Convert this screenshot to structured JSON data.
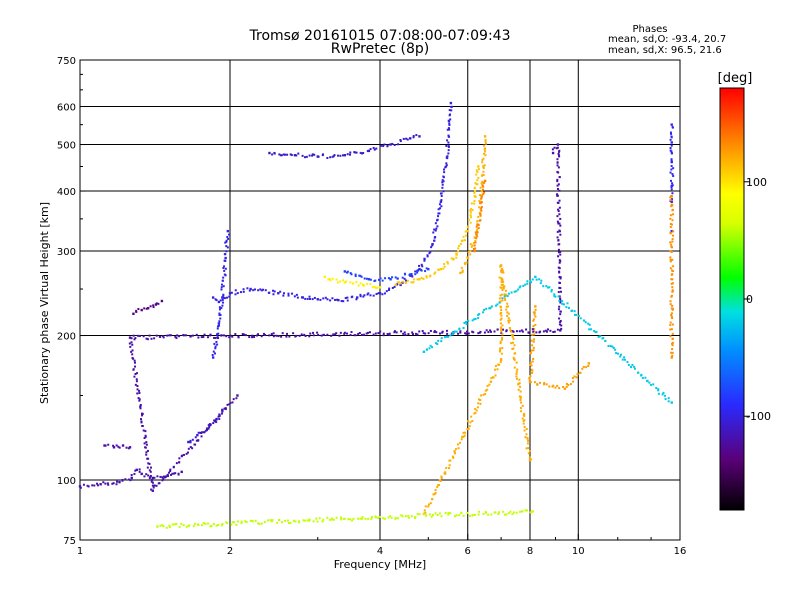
{
  "chart_data": {
    "type": "scatter",
    "title": "Tromsø 20161015 07:08:00-07:09:43",
    "subtitle": "RwPretec (8p)",
    "xlabel": "Frequency [MHz]",
    "ylabel": "Stationary phase Virtual Height [km]",
    "x_scale": "log",
    "y_scale": "log",
    "xlim": [
      1,
      16
    ],
    "ylim": [
      75,
      750
    ],
    "x_ticks": [
      1,
      2,
      4,
      6,
      8,
      10,
      16
    ],
    "x_tick_labels": [
      "1",
      "2",
      "4",
      "6",
      "8",
      "10",
      "16"
    ],
    "y_ticks": [
      75,
      100,
      200,
      300,
      400,
      500,
      600,
      750
    ],
    "y_tick_labels": [
      "75",
      "100",
      "200",
      "300",
      "400",
      "500",
      "600",
      "750"
    ],
    "grid": true,
    "colorbar": {
      "label": "[deg]",
      "range": [
        -180,
        180
      ],
      "ticks": [
        100,
        0,
        -100
      ],
      "tick_labels": [
        "100",
        "0",
        "-100"
      ]
    },
    "stats": {
      "heading": "Phases",
      "line_o": "mean, sd,O: -93.4, 20.7",
      "line_x": "mean, sd,X:  96.5, 21.6"
    },
    "traces": [
      {
        "phase": -118,
        "points": [
          [
            1.0,
            97
          ],
          [
            1.1,
            98
          ],
          [
            1.2,
            99
          ],
          [
            1.27,
            101
          ],
          [
            1.3,
            105
          ],
          [
            1.33,
            103
          ],
          [
            1.4,
            101
          ],
          [
            1.5,
            102
          ],
          [
            1.6,
            104
          ]
        ]
      },
      {
        "phase": -120,
        "points": [
          [
            1.12,
            118
          ],
          [
            1.17,
            117
          ],
          [
            1.22,
            118
          ],
          [
            1.26,
            117
          ]
        ]
      },
      {
        "phase": -130,
        "points": [
          [
            1.28,
            222
          ],
          [
            1.33,
            226
          ],
          [
            1.37,
            228
          ],
          [
            1.42,
            232
          ],
          [
            1.46,
            236
          ]
        ]
      },
      {
        "phase": -102,
        "points": [
          [
            1.65,
            120
          ],
          [
            1.72,
            124
          ],
          [
            1.8,
            128
          ],
          [
            1.88,
            134
          ],
          [
            1.93,
            140
          ]
        ]
      },
      {
        "phase": -98,
        "points": [
          [
            1.85,
            180
          ],
          [
            1.9,
            212
          ],
          [
            1.93,
            240
          ],
          [
            1.96,
            290
          ],
          [
            1.98,
            330
          ]
        ]
      },
      {
        "phase": -100,
        "points": [
          [
            1.85,
            240
          ],
          [
            1.9,
            235
          ],
          [
            2.0,
            245
          ],
          [
            2.2,
            250
          ],
          [
            2.5,
            245
          ],
          [
            2.8,
            240
          ],
          [
            3.0,
            238
          ],
          [
            3.3,
            237
          ],
          [
            3.6,
            240
          ],
          [
            4.0,
            245
          ],
          [
            4.4,
            255
          ],
          [
            4.8,
            275
          ],
          [
            5.1,
            310
          ],
          [
            5.3,
            380
          ],
          [
            5.45,
            470
          ],
          [
            5.5,
            560
          ],
          [
            5.55,
            610
          ]
        ]
      },
      {
        "phase": -80,
        "points": [
          [
            3.4,
            272
          ],
          [
            3.8,
            262
          ],
          [
            4.2,
            262
          ],
          [
            4.6,
            268
          ],
          [
            5.0,
            275
          ]
        ]
      },
      {
        "phase": 95,
        "points": [
          [
            3.1,
            265
          ],
          [
            3.4,
            258
          ],
          [
            3.7,
            255
          ],
          [
            4.0,
            252
          ]
        ]
      },
      {
        "phase": 110,
        "points": [
          [
            4.3,
            255
          ],
          [
            4.8,
            262
          ],
          [
            5.3,
            275
          ],
          [
            5.7,
            295
          ],
          [
            6.0,
            330
          ],
          [
            6.2,
            390
          ],
          [
            6.3,
            450
          ]
        ]
      },
      {
        "phase": -108,
        "points": [
          [
            2.4,
            480
          ],
          [
            2.7,
            475
          ],
          [
            3.0,
            472
          ],
          [
            3.4,
            475
          ],
          [
            3.8,
            485
          ],
          [
            4.2,
            500
          ],
          [
            4.6,
            515
          ],
          [
            4.8,
            520
          ]
        ]
      },
      {
        "phase": 118,
        "points": [
          [
            5.8,
            270
          ],
          [
            6.0,
            290
          ],
          [
            6.2,
            320
          ],
          [
            6.35,
            360
          ],
          [
            6.4,
            400
          ],
          [
            6.45,
            450
          ],
          [
            6.5,
            520
          ]
        ]
      },
      {
        "phase": 135,
        "points": [
          [
            6.2,
            300
          ],
          [
            6.3,
            340
          ],
          [
            6.4,
            390
          ],
          [
            6.5,
            420
          ]
        ]
      },
      {
        "phase": -95,
        "points": [
          [
            15.4,
            550
          ],
          [
            15.4,
            505
          ],
          [
            15.4,
            460
          ],
          [
            15.4,
            410
          ],
          [
            15.4,
            380
          ]
        ]
      },
      {
        "phase": -90,
        "points": [
          [
            15.4,
            330
          ]
        ]
      },
      {
        "phase": 130,
        "points": [
          [
            15.4,
            180
          ],
          [
            15.4,
            390
          ]
        ]
      },
      {
        "phase": 125,
        "points": [
          [
            8.2,
            230
          ],
          [
            8.0,
            160
          ],
          [
            9.4,
            155
          ],
          [
            10.5,
            175
          ]
        ]
      },
      {
        "phase": -120,
        "points": [
          [
            8.9,
            480
          ],
          [
            9.1,
            500
          ],
          [
            9.2,
            205
          ],
          [
            1.26,
            198
          ],
          [
            1.4,
            95
          ],
          [
            2.07,
            150
          ]
        ]
      },
      {
        "phase": -20,
        "points": [
          [
            4.9,
            185
          ],
          [
            8.2,
            265
          ],
          [
            15.4,
            145
          ]
        ]
      },
      {
        "phase": 120,
        "points": [
          [
            4.9,
            85
          ],
          [
            7.0,
            178
          ],
          [
            7.0,
            280
          ],
          [
            8.0,
            110
          ]
        ]
      },
      {
        "phase": 60,
        "points": [
          [
            1.43,
            80
          ],
          [
            8.1,
            86
          ]
        ]
      }
    ]
  }
}
